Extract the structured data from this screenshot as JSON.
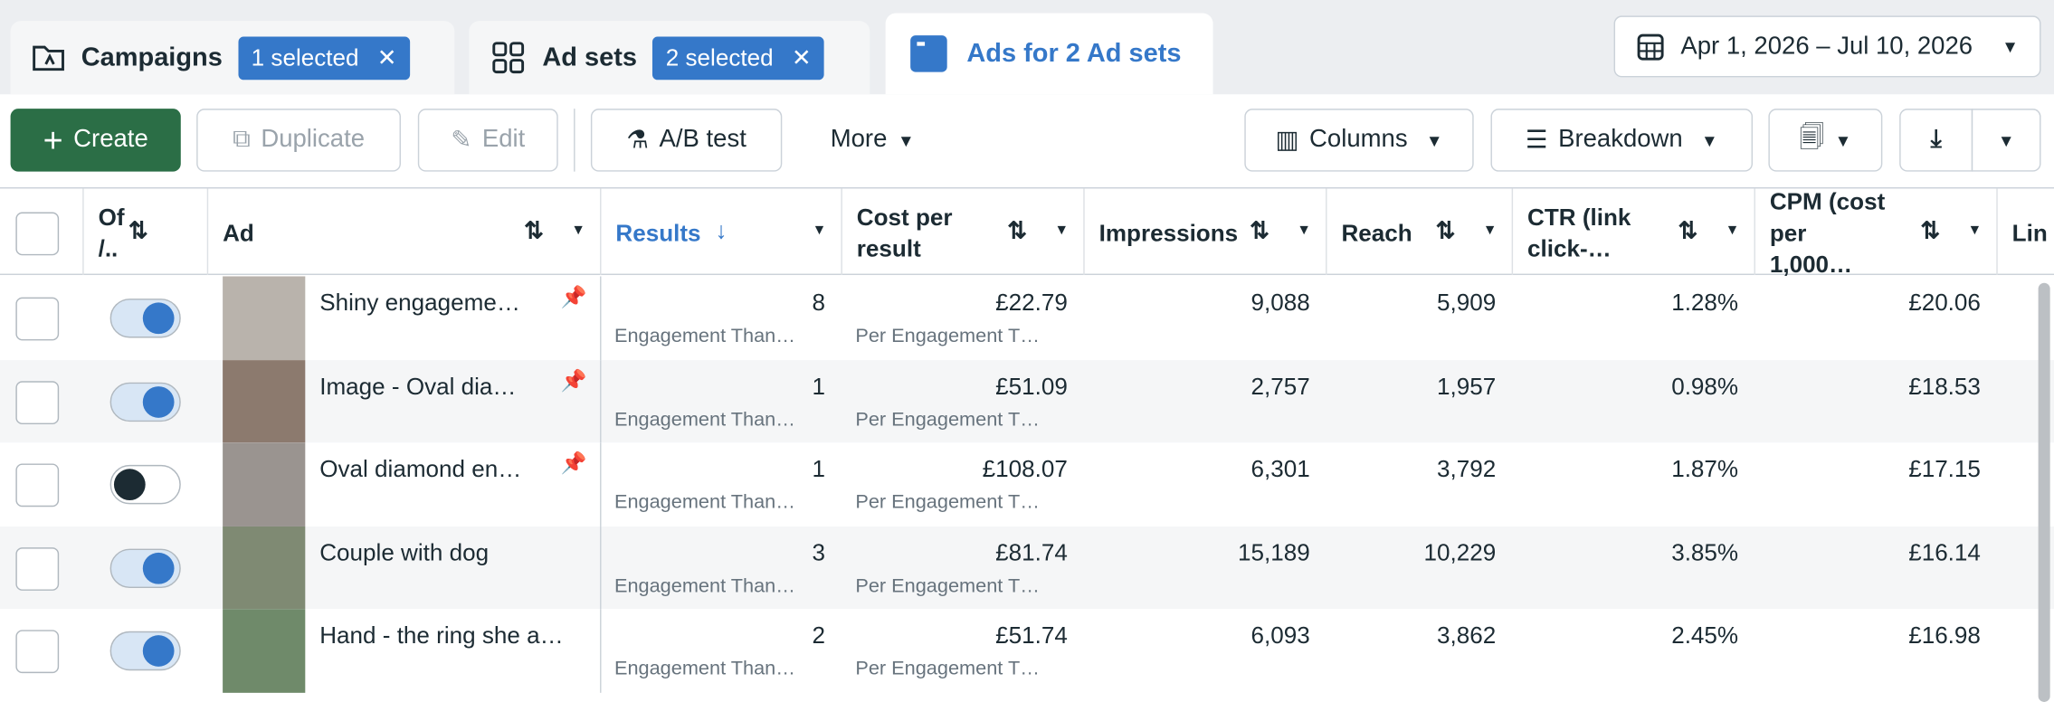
{
  "tabs": [
    {
      "label": "Campaigns",
      "badge": "1 selected"
    },
    {
      "label": "Ad sets",
      "badge": "2 selected"
    },
    {
      "label": "Ads for 2 Ad sets"
    }
  ],
  "date_range": "Apr 1, 2026 – Jul 10, 2026",
  "toolbar": {
    "create": "Create",
    "duplicate": "Duplicate",
    "edit": "Edit",
    "ab_test": "A/B test",
    "more": "More",
    "columns": "Columns",
    "breakdown": "Breakdown"
  },
  "table": {
    "columns": [
      "Of /..",
      "Ad",
      "Results",
      "Cost per result",
      "Impressions",
      "Reach",
      "CTR (link click-…",
      "CPM (cost per 1,000…",
      "Lin"
    ],
    "rows": [
      {
        "name": "Shiny engageme…",
        "active": true,
        "pinned": true,
        "results": "8",
        "results_label": "Engagement Than…",
        "cost": "£22.79",
        "cost_label": "Per Engagement T…",
        "impressions": "9,088",
        "reach": "5,909",
        "ctr": "1.28%",
        "cpm": "£20.06"
      },
      {
        "name": "Image - Oval dia…",
        "active": true,
        "pinned": true,
        "results": "1",
        "results_label": "Engagement Than…",
        "cost": "£51.09",
        "cost_label": "Per Engagement T…",
        "impressions": "2,757",
        "reach": "1,957",
        "ctr": "0.98%",
        "cpm": "£18.53"
      },
      {
        "name": "Oval diamond en…",
        "active": false,
        "pinned": true,
        "results": "1",
        "results_label": "Engagement Than…",
        "cost": "£108.07",
        "cost_label": "Per Engagement T…",
        "impressions": "6,301",
        "reach": "3,792",
        "ctr": "1.87%",
        "cpm": "£17.15"
      },
      {
        "name": "Couple with dog",
        "active": true,
        "pinned": false,
        "results": "3",
        "results_label": "Engagement Than…",
        "cost": "£81.74",
        "cost_label": "Per Engagement T…",
        "impressions": "15,189",
        "reach": "10,229",
        "ctr": "3.85%",
        "cpm": "£16.14"
      },
      {
        "name": "Hand - the ring she a…",
        "active": true,
        "pinned": false,
        "results": "2",
        "results_label": "Engagement Than…",
        "cost": "£51.74",
        "cost_label": "Per Engagement T…",
        "impressions": "6,093",
        "reach": "3,862",
        "ctr": "2.45%",
        "cpm": "£16.98"
      }
    ]
  }
}
